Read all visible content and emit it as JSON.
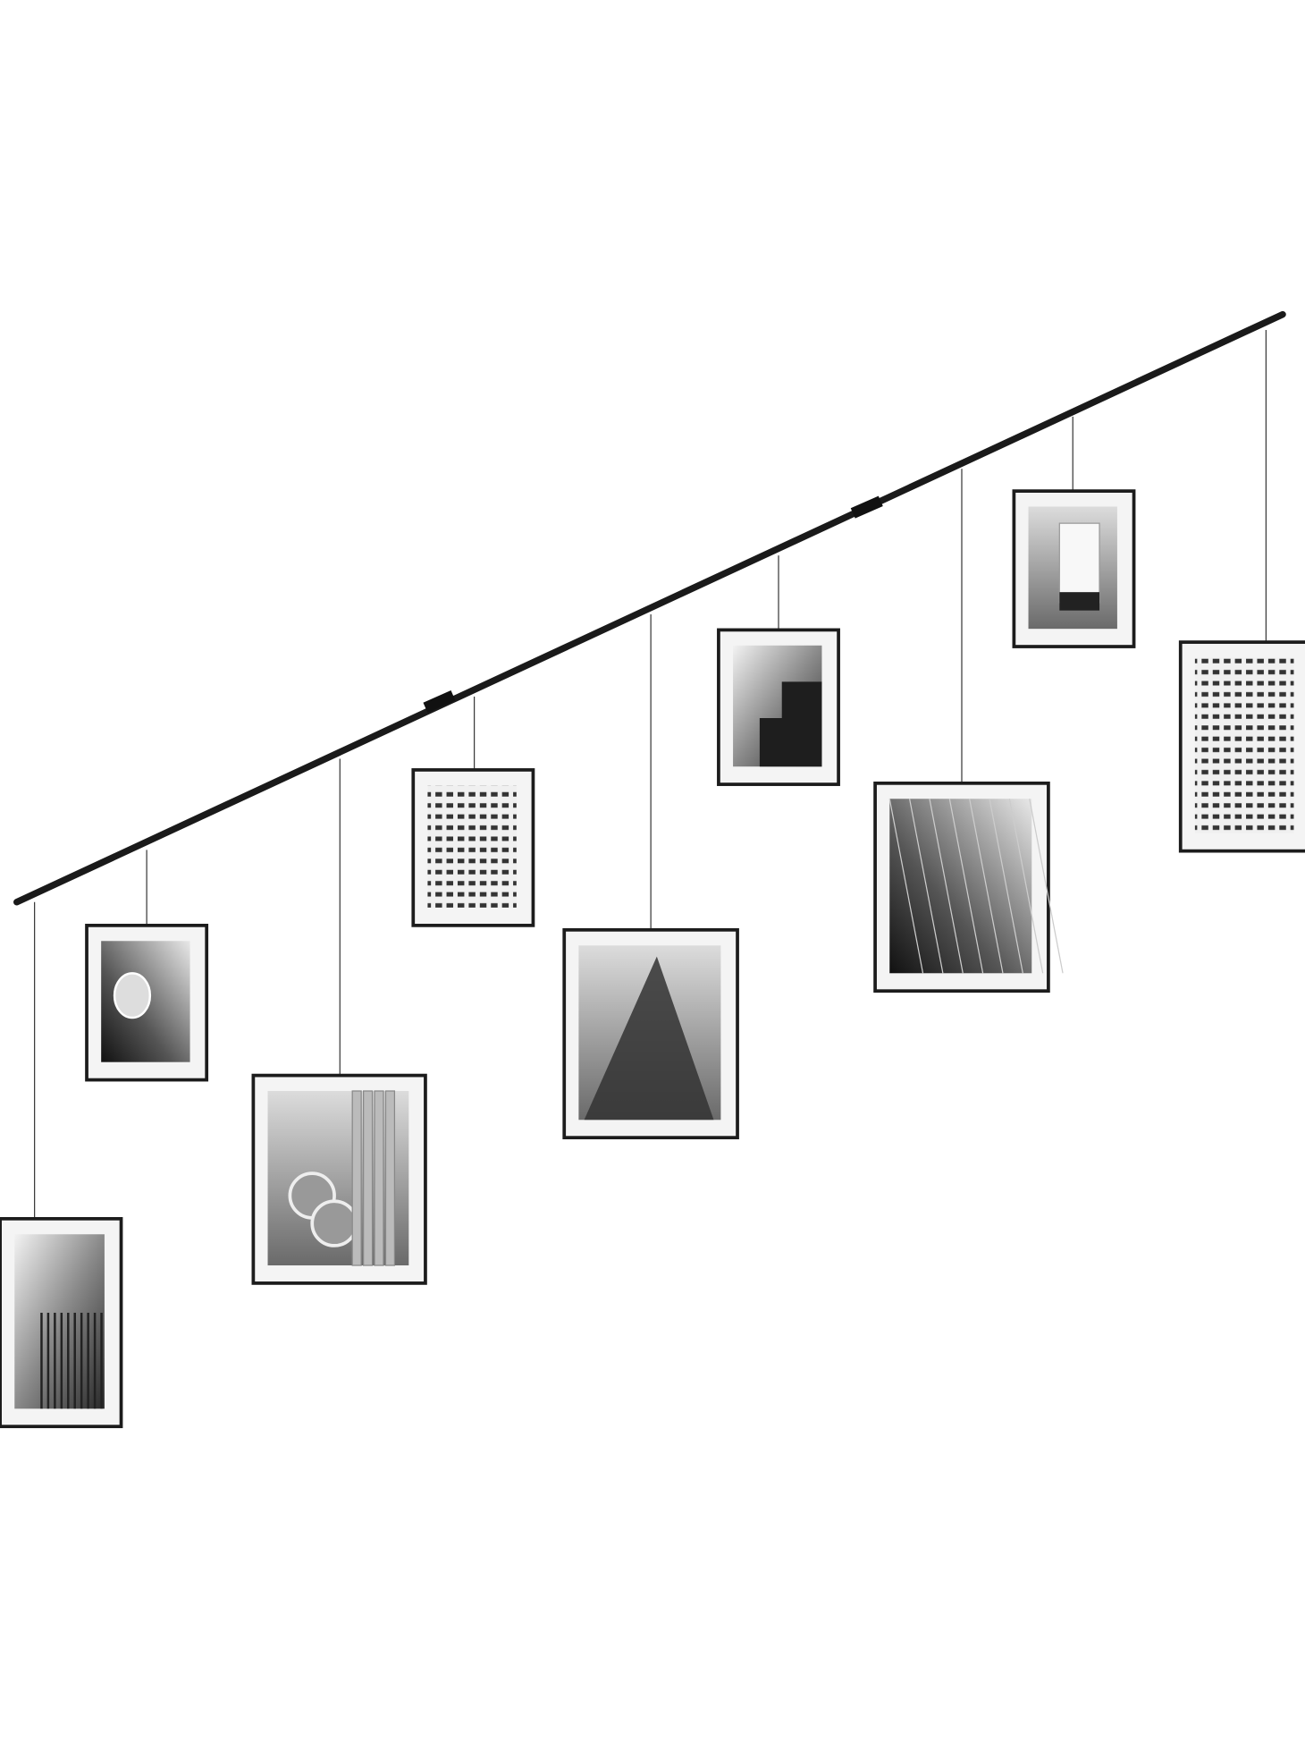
{
  "colors": {
    "background": "#ffffff",
    "rail": "#1a1a1a",
    "frame": "#1c1c1c",
    "wire": "#3a3a3a",
    "mat": "#f4f4f4"
  },
  "photo_frames_count": 9
}
